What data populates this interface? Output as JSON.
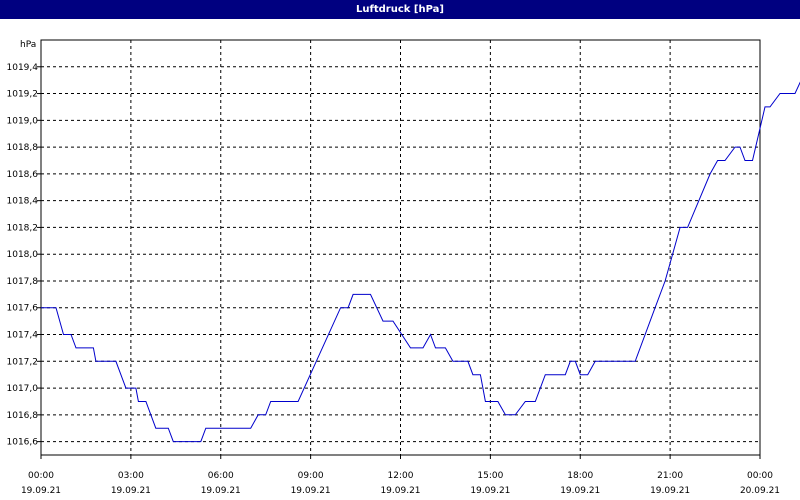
{
  "window": {
    "title": "Luftdruck [hPa]"
  },
  "chart_data": {
    "type": "line",
    "title": "Luftdruck [hPa]",
    "ylabel": "hPa",
    "xlabel": "",
    "ylim": [
      1016.5,
      1019.6
    ],
    "xlim": [
      "19.09.21 00:00",
      "20.09.21 00:00"
    ],
    "grid": true,
    "y_ticks": [
      "1016,6",
      "1016,8",
      "1017,0",
      "1017,2",
      "1017,4",
      "1017,6",
      "1017,8",
      "1018,0",
      "1018,2",
      "1018,4",
      "1018,6",
      "1018,8",
      "1019,0",
      "1019,2",
      "1019,4"
    ],
    "x_ticks": [
      {
        "time": "00:00",
        "date": "19.09.21"
      },
      {
        "time": "03:00",
        "date": "19.09.21"
      },
      {
        "time": "06:00",
        "date": "19.09.21"
      },
      {
        "time": "09:00",
        "date": "19.09.21"
      },
      {
        "time": "12:00",
        "date": "19.09.21"
      },
      {
        "time": "15:00",
        "date": "19.09.21"
      },
      {
        "time": "18:00",
        "date": "19.09.21"
      },
      {
        "time": "21:00",
        "date": "19.09.21"
      },
      {
        "time": "00:00",
        "date": "20.09.21"
      }
    ],
    "series": [
      {
        "color": "#0000cc",
        "points": [
          [
            "00:00",
            1017.6
          ],
          [
            "00:30",
            1017.6
          ],
          [
            "00:45",
            1017.4
          ],
          [
            "01:00",
            1017.4
          ],
          [
            "01:10",
            1017.3
          ],
          [
            "01:45",
            1017.3
          ],
          [
            "01:50",
            1017.2
          ],
          [
            "02:30",
            1017.2
          ],
          [
            "02:50",
            1017.0
          ],
          [
            "03:10",
            1017.0
          ],
          [
            "03:15",
            1016.9
          ],
          [
            "03:30",
            1016.9
          ],
          [
            "03:50",
            1016.7
          ],
          [
            "04:15",
            1016.7
          ],
          [
            "04:25",
            1016.6
          ],
          [
            "05:20",
            1016.6
          ],
          [
            "05:30",
            1016.7
          ],
          [
            "07:00",
            1016.7
          ],
          [
            "07:15",
            1016.8
          ],
          [
            "07:30",
            1016.8
          ],
          [
            "07:40",
            1016.9
          ],
          [
            "08:35",
            1016.9
          ],
          [
            "10:00",
            1017.6
          ],
          [
            "10:15",
            1017.6
          ],
          [
            "10:25",
            1017.7
          ],
          [
            "11:00",
            1017.7
          ],
          [
            "11:25",
            1017.5
          ],
          [
            "11:45",
            1017.5
          ],
          [
            "12:20",
            1017.3
          ],
          [
            "12:45",
            1017.3
          ],
          [
            "13:00",
            1017.4
          ],
          [
            "13:10",
            1017.3
          ],
          [
            "13:30",
            1017.3
          ],
          [
            "13:45",
            1017.2
          ],
          [
            "14:15",
            1017.2
          ],
          [
            "14:25",
            1017.1
          ],
          [
            "14:40",
            1017.1
          ],
          [
            "14:50",
            1016.9
          ],
          [
            "15:15",
            1016.9
          ],
          [
            "15:30",
            1016.8
          ],
          [
            "15:50",
            1016.8
          ],
          [
            "16:10",
            1016.9
          ],
          [
            "16:30",
            1016.9
          ],
          [
            "16:50",
            1017.1
          ],
          [
            "17:30",
            1017.1
          ],
          [
            "17:40",
            1017.2
          ],
          [
            "17:50",
            1017.2
          ],
          [
            "18:00",
            1017.1
          ],
          [
            "18:15",
            1017.1
          ],
          [
            "18:30",
            1017.2
          ],
          [
            "19:50",
            1017.2
          ],
          [
            "20:30",
            1017.6
          ],
          [
            "20:50",
            1017.8
          ],
          [
            "21:05",
            1018.0
          ],
          [
            "21:20",
            1018.2
          ],
          [
            "21:35",
            1018.2
          ],
          [
            "22:20",
            1018.6
          ],
          [
            "22:35",
            1018.7
          ],
          [
            "22:50",
            1018.7
          ],
          [
            "23:10",
            1018.8
          ],
          [
            "23:20",
            1018.8
          ],
          [
            "23:30",
            1018.7
          ],
          [
            "23:45",
            1018.7
          ],
          [
            "00:10",
            1019.1
          ],
          [
            "00:20",
            1019.1
          ],
          [
            "00:40",
            1019.2
          ],
          [
            "01:10",
            1019.2
          ],
          [
            "01:35",
            1019.4
          ],
          [
            "01:50",
            1019.4
          ],
          [
            "02:05",
            1019.5
          ],
          [
            "02:20",
            1019.4
          ],
          [
            "02:30",
            1019.5
          ]
        ]
      }
    ]
  }
}
